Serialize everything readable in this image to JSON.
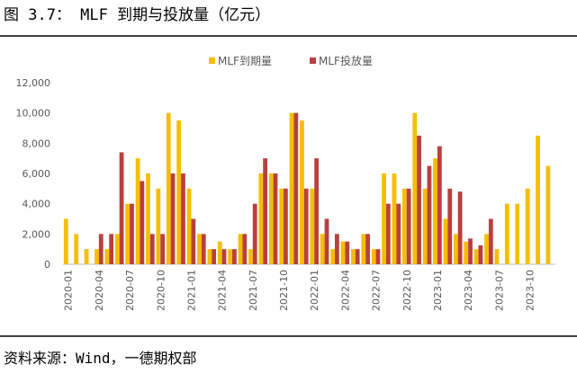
{
  "title": "图 3.7： MLF 到期与投放量（亿元）",
  "source": "资料来源：Wind，一德期权部",
  "chart_data": {
    "type": "bar",
    "categories": [
      "2020-01",
      null,
      null,
      "2020-04",
      null,
      null,
      "2020-07",
      null,
      null,
      "2020-10",
      null,
      null,
      "2021-01",
      null,
      null,
      "2021-04",
      null,
      null,
      "2021-07",
      null,
      null,
      "2021-10",
      null,
      null,
      "2022-01",
      null,
      null,
      "2022-04",
      null,
      null,
      "2022-07",
      null,
      null,
      "2022-10",
      null,
      null,
      "2023-01",
      null,
      null,
      "2023-04",
      null,
      null,
      "2023-07",
      null,
      null,
      "2023-10",
      null,
      null
    ],
    "series": [
      {
        "name": "MLF到期量",
        "color": "#f5be00",
        "values": [
          3000,
          2000,
          1000,
          1000,
          1000,
          2000,
          4000,
          7000,
          6000,
          5000,
          10000,
          9500,
          5000,
          2000,
          1000,
          1500,
          1000,
          2000,
          1000,
          6000,
          6000,
          5000,
          10000,
          9500,
          5000,
          2000,
          1000,
          1500,
          1000,
          2000,
          1000,
          6000,
          6000,
          5000,
          10000,
          5000,
          7000,
          3000,
          2000,
          1500,
          1000,
          2000,
          1000,
          4000,
          4000,
          5000,
          8500,
          6500
        ]
      },
      {
        "name": "MLF投放量",
        "color": "#b8403f",
        "values": [
          null,
          null,
          null,
          2000,
          2000,
          7400,
          4000,
          5500,
          2000,
          2000,
          6000,
          6000,
          3000,
          2000,
          1000,
          1000,
          1000,
          2000,
          4000,
          7000,
          6000,
          5000,
          10000,
          5000,
          7000,
          3000,
          2000,
          1500,
          1000,
          2000,
          1000,
          4000,
          4000,
          5000,
          8500,
          6500,
          7800,
          5000,
          4800,
          1700,
          1250,
          3000,
          null,
          null,
          null,
          null,
          null,
          null
        ]
      }
    ],
    "ylim": [
      0,
      12000
    ],
    "yticks": [
      0,
      {
        "value": 2000,
        "label": "2,000"
      },
      {
        "value": 4000,
        "label": "4,000"
      },
      {
        "value": 6000,
        "label": "6,000"
      },
      {
        "value": 8000,
        "label": "8,000"
      },
      {
        "value": 10000,
        "label": "10,000"
      },
      {
        "value": 12000,
        "label": "12,000"
      }
    ],
    "grid": false
  }
}
